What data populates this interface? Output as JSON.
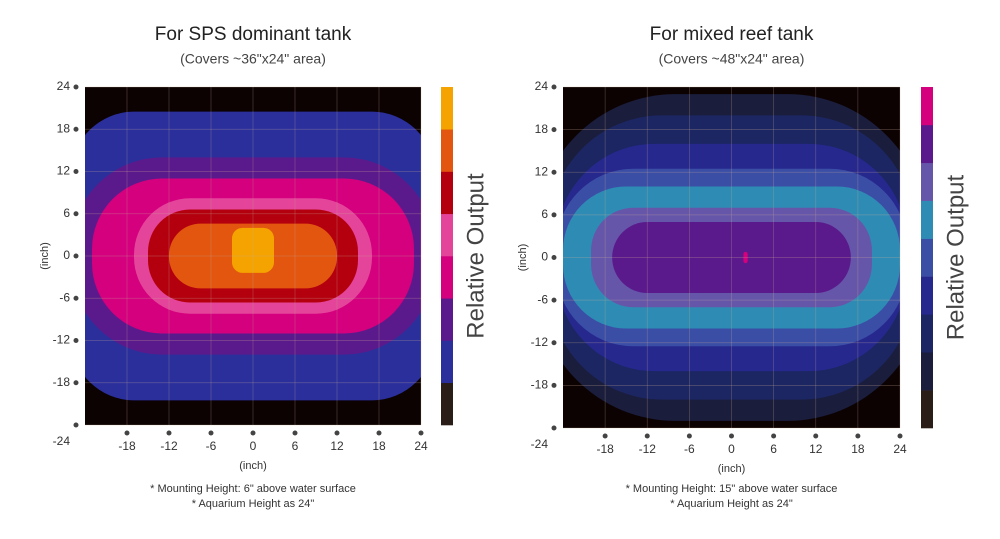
{
  "chart_data": [
    {
      "type": "contour",
      "title": "For SPS dominant tank",
      "subtitle": "(Covers ~36\"x24\" area)",
      "xlabel": "(inch)",
      "ylabel": "(inch)",
      "colorbar_label": "Relative Output",
      "xlim": [
        -24,
        24
      ],
      "ylim": [
        -24,
        24
      ],
      "xticks": [
        -18,
        -12,
        -6,
        0,
        6,
        12,
        18,
        24
      ],
      "yticks": [
        -24,
        -18,
        -12,
        -6,
        0,
        6,
        12,
        18,
        24
      ],
      "grid": true,
      "colorbar_colors": [
        "#2a1c16",
        "#2a2f9c",
        "#5b1a8c",
        "#d4007e",
        "#e4449a",
        "#b4000e",
        "#e25610",
        "#f5a300"
      ],
      "notes": [
        "* Mounting Height: 6\" above water surface",
        "* Aquarium Height as 24\""
      ]
    },
    {
      "type": "contour",
      "title": "For mixed reef tank",
      "subtitle": "(Covers ~48\"x24\" area)",
      "xlabel": "(inch)",
      "ylabel": "(inch)",
      "colorbar_label": "Relative Output",
      "xlim": [
        -24,
        24
      ],
      "ylim": [
        -24,
        24
      ],
      "xticks": [
        -18,
        -12,
        -6,
        0,
        6,
        12,
        18,
        24
      ],
      "yticks": [
        -24,
        -18,
        -12,
        -6,
        0,
        6,
        12,
        18,
        24
      ],
      "grid": true,
      "colorbar_colors": [
        "#2a1c16",
        "#1a1d3c",
        "#1c2662",
        "#26288e",
        "#3b4ea6",
        "#2e8cb4",
        "#6656aa",
        "#5b1a8c",
        "#d4007e"
      ],
      "notes": [
        "* Mounting Height: 15\" above water surface",
        "* Aquarium Height as 24\""
      ]
    }
  ]
}
